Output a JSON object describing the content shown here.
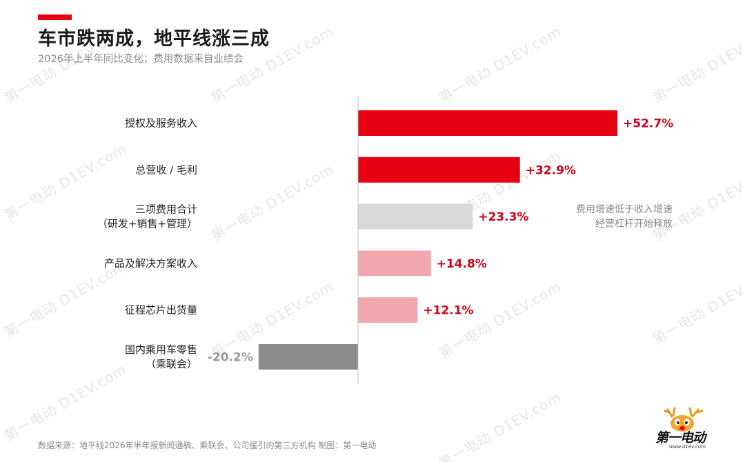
{
  "header": {
    "title": "车市跌两成，地平线涨三成",
    "subtitle": "2026年上半年同比变化；费用数据来自业绩会",
    "accent_color": "#e60012"
  },
  "note": {
    "line1": "费用增速低于收入增速",
    "line2": "经营杠杆开始释放"
  },
  "footer": {
    "source": "数据来源：地平线2026年半年报新闻通稿、乘联会、公司援引的第三方机构  制图：第一电动"
  },
  "logo": {
    "text": "第一电动",
    "sub": "www.d1ev.com",
    "icon": "reindeer-mascot-icon"
  },
  "watermark": {
    "text": "第一电动 D1EV.com"
  },
  "colors": {
    "strong_red": "#e60012",
    "light_red": "#f2a7ae",
    "light_gray": "#d9d9d9",
    "dark_gray": "#8c8c8c",
    "positive_label": "#d0021b",
    "negative_label": "#999999"
  },
  "chart_data": {
    "type": "bar",
    "orientation": "horizontal",
    "title": "车市跌两成，地平线涨三成",
    "subtitle": "2026年上半年同比变化；费用数据来自业绩会",
    "categories": [
      [
        "授权及服务收入"
      ],
      [
        "总营收 / 毛利"
      ],
      [
        "三项费用合计",
        "（研发+销售+管理）"
      ],
      [
        "产品及解决方案收入"
      ],
      [
        "征程芯片出货量"
      ],
      [
        "国内乘用车零售",
        "（乘联会）"
      ]
    ],
    "values": [
      52.7,
      32.9,
      23.3,
      14.8,
      12.1,
      -20.2
    ],
    "labels": [
      "+52.7%",
      "+32.9%",
      "+23.3%",
      "+14.8%",
      "+12.1%",
      "-20.2%"
    ],
    "bar_colors": [
      "#e60012",
      "#e60012",
      "#d9d9d9",
      "#f2a7ae",
      "#f2a7ae",
      "#8c8c8c"
    ],
    "label_colors": [
      "#d0021b",
      "#d0021b",
      "#d0021b",
      "#d0021b",
      "#d0021b",
      "#999999"
    ],
    "unit": "%",
    "xlim": [
      -20.2,
      52.7
    ],
    "grid": false,
    "legend": "none"
  }
}
